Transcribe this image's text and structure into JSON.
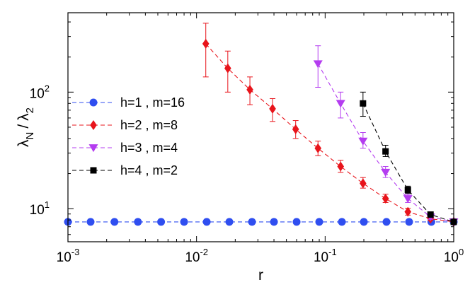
{
  "chart_data": {
    "type": "scatter",
    "x_scale": "log",
    "y_scale": "log",
    "xlim": [
      0.001,
      1
    ],
    "ylim": [
      5.2,
      480
    ],
    "xlabel": "r",
    "ylabel": "λ_N / λ_2",
    "ylabel_parts": {
      "lambda": "λ",
      "sub_n": "N",
      "slash": "/",
      "sub_2": "2"
    },
    "x_ticks": [
      {
        "value": 0.001,
        "base": "10",
        "exp": "-3"
      },
      {
        "value": 0.01,
        "base": "10",
        "exp": "-2"
      },
      {
        "value": 0.1,
        "base": "10",
        "exp": "-1"
      },
      {
        "value": 1,
        "base": "10",
        "exp": "0"
      }
    ],
    "y_ticks": [
      {
        "value": 10,
        "base": "10",
        "exp": "1"
      },
      {
        "value": 100,
        "base": "10",
        "exp": "2"
      }
    ],
    "legend_position": "upper-left",
    "series": [
      {
        "name": "h=1 , m=16",
        "color": "#2f4ef0",
        "marker": "circle",
        "x": [
          0.001,
          0.0015,
          0.0023,
          0.0035,
          0.0053,
          0.008,
          0.012,
          0.018,
          0.027,
          0.04,
          0.06,
          0.09,
          0.135,
          0.2,
          0.3,
          0.45,
          0.67,
          1.0
        ],
        "y": [
          7.7,
          7.7,
          7.7,
          7.7,
          7.7,
          7.7,
          7.7,
          7.7,
          7.7,
          7.7,
          7.7,
          7.7,
          7.7,
          7.7,
          7.7,
          7.7,
          7.7,
          7.7
        ],
        "err_low": [
          7.4,
          7.4,
          7.4,
          7.4,
          7.4,
          7.4,
          7.4,
          7.4,
          7.4,
          7.4,
          7.4,
          7.4,
          7.4,
          7.4,
          7.4,
          7.4,
          7.4,
          7.4
        ],
        "err_high": [
          8.0,
          8.0,
          8.0,
          8.0,
          8.0,
          8.0,
          8.0,
          8.0,
          8.0,
          8.0,
          8.0,
          8.0,
          8.0,
          8.0,
          8.0,
          8.0,
          8.0,
          8.0
        ]
      },
      {
        "name": "h=2 , m=8",
        "color": "#e8141b",
        "marker": "diamond",
        "x": [
          0.0118,
          0.0175,
          0.026,
          0.039,
          0.059,
          0.088,
          0.132,
          0.197,
          0.295,
          0.44,
          0.66,
          1.0
        ],
        "y": [
          260,
          160,
          105,
          72,
          48,
          33,
          23,
          16.5,
          12.2,
          9.4,
          8.2,
          7.7
        ],
        "err_low": [
          135,
          100,
          78,
          56,
          40,
          28.5,
          20.5,
          15.0,
          11.3,
          8.8,
          7.9,
          7.5
        ],
        "err_high": [
          390,
          225,
          135,
          88,
          57,
          38,
          26,
          18.5,
          13.3,
          10.1,
          8.6,
          7.9
        ]
      },
      {
        "name": "h=3 , m=4",
        "color": "#b43cf0",
        "marker": "triangle-down",
        "x": [
          0.088,
          0.132,
          0.197,
          0.295,
          0.44,
          0.66,
          1.0
        ],
        "y": [
          175,
          80,
          38,
          20.5,
          12.2,
          8.5,
          7.7
        ],
        "err_low": [
          110,
          60,
          33,
          18.5,
          11.3,
          8.1,
          7.5
        ],
        "err_high": [
          250,
          100,
          45,
          23,
          13.3,
          8.9,
          7.9
        ]
      },
      {
        "name": "h=4 , m=2",
        "color": "#000000",
        "marker": "square",
        "x": [
          0.197,
          0.295,
          0.44,
          0.66,
          1.0
        ],
        "y": [
          80,
          31,
          14.5,
          8.9,
          7.7
        ],
        "err_low": [
          62,
          28,
          13.5,
          8.5,
          7.5
        ],
        "err_high": [
          100,
          35,
          15.6,
          9.3,
          7.9
        ]
      }
    ]
  }
}
